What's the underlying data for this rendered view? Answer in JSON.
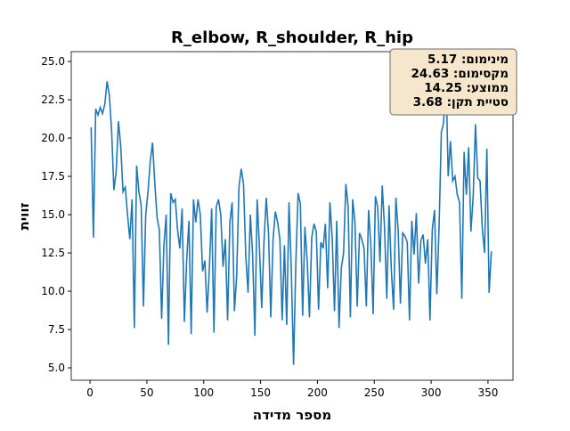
{
  "chart_data": {
    "type": "line",
    "title": "R_elbow, R_shoulder, R_hip",
    "xlabel": "מספר מדידה",
    "ylabel": "זווית",
    "annotation": [
      "מינימום: 5.17",
      "מקסימום: 24.63",
      "ממוצע: 14.25",
      "סטיית תקן: 3.68"
    ],
    "xlim": [
      -16.5,
      372
    ],
    "ylim": [
      4.19,
      25.64
    ],
    "xticks": [
      0,
      50,
      100,
      150,
      200,
      250,
      300,
      350
    ],
    "yticks": [
      {
        "value": 5,
        "label": "5.0"
      },
      7.5,
      {
        "value": 10,
        "label": "10.0"
      },
      12.5,
      {
        "value": 15,
        "label": "15.0"
      },
      17.5,
      {
        "value": 20,
        "label": "20.0"
      },
      22.5,
      {
        "value": 25,
        "label": "25.0"
      }
    ],
    "x": [
      1,
      3,
      5,
      7,
      9,
      11,
      13,
      15,
      17,
      19,
      21,
      23,
      25,
      27,
      29,
      31,
      33,
      35,
      37,
      39,
      41,
      43,
      45,
      47,
      49,
      51,
      53,
      55,
      57,
      59,
      61,
      63,
      65,
      67,
      69,
      71,
      73,
      75,
      77,
      79,
      81,
      83,
      85,
      87,
      89,
      91,
      93,
      95,
      97,
      99,
      101,
      103,
      105,
      107,
      109,
      111,
      113,
      115,
      117,
      119,
      121,
      123,
      125,
      127,
      129,
      131,
      133,
      135,
      137,
      139,
      141,
      143,
      145,
      147,
      149,
      151,
      153,
      155,
      157,
      159,
      161,
      163,
      165,
      167,
      169,
      171,
      173,
      175,
      177,
      179,
      181,
      183,
      185,
      187,
      189,
      191,
      193,
      195,
      197,
      199,
      201,
      203,
      205,
      207,
      209,
      211,
      213,
      215,
      217,
      219,
      221,
      223,
      225,
      227,
      229,
      231,
      233,
      235,
      237,
      239,
      241,
      243,
      245,
      247,
      249,
      251,
      253,
      255,
      257,
      259,
      261,
      263,
      265,
      267,
      269,
      271,
      273,
      275,
      277,
      279,
      281,
      283,
      285,
      287,
      289,
      291,
      293,
      295,
      297,
      299,
      301,
      303,
      305,
      307,
      309,
      311,
      313,
      315,
      317,
      319,
      321,
      323,
      325,
      327,
      329,
      331,
      333,
      335,
      337,
      339,
      341,
      343,
      345,
      347,
      349,
      351,
      353
    ],
    "series": [
      {
        "name": "R_elbow, R_shoulder, R_hip",
        "color": "#1f77b4",
        "values": [
          20.7,
          13.5,
          21.9,
          21.5,
          22,
          21.6,
          22.2,
          23.7,
          22.8,
          20.5,
          16.6,
          17.8,
          21.1,
          19.5,
          16.5,
          16.8,
          15,
          13.4,
          16,
          7.6,
          18.2,
          16.5,
          15.6,
          9,
          15,
          16.5,
          18.5,
          19.7,
          17,
          14.8,
          14,
          8.2,
          13,
          15,
          6.5,
          16.4,
          15.8,
          16,
          14,
          12.8,
          15.4,
          8,
          12,
          14.6,
          7.2,
          16,
          14.5,
          16,
          15,
          11.3,
          12,
          8.6,
          11.5,
          15.4,
          7.3,
          15.5,
          16,
          15,
          11.6,
          13.4,
          8.1,
          14.5,
          15.8,
          8.7,
          11,
          16.8,
          18,
          17,
          12.3,
          9.9,
          15,
          12.4,
          7.1,
          16,
          12.9,
          8.9,
          13.2,
          16.1,
          13.8,
          8.3,
          13.4,
          15.2,
          14.5,
          13.4,
          8.1,
          13,
          7.8,
          15.8,
          11.5,
          5.2,
          11.8,
          16.4,
          15.7,
          8.4,
          14.2,
          12,
          8.3,
          13.5,
          14.4,
          13.9,
          8.8,
          13.2,
          12.8,
          14.4,
          10.2,
          15.8,
          13.5,
          8.7,
          14.6,
          7.6,
          11.5,
          12.5,
          17,
          15.5,
          8.3,
          16,
          14.5,
          9,
          13.8,
          13.4,
          12.8,
          9,
          15.3,
          13,
          8.5,
          16.2,
          15.5,
          11.9,
          16.9,
          14.2,
          9.5,
          15.6,
          11.4,
          8.8,
          16.1,
          14,
          9.2,
          13.8,
          13.6,
          13.2,
          8.1,
          14.6,
          12.4,
          15.1,
          10.5,
          13.3,
          13.7,
          11.8,
          13.4,
          8.1,
          14,
          15.3,
          9.8,
          14.2,
          20.4,
          21,
          24.6,
          17.5,
          19.8,
          17.2,
          17.5,
          16.3,
          15.8,
          9.5,
          19.1,
          16.3,
          19.4,
          13.9,
          16.2,
          20.9,
          17.4,
          17.2,
          14.1,
          12.5,
          19.3,
          9.9,
          12.6
        ]
      }
    ]
  }
}
